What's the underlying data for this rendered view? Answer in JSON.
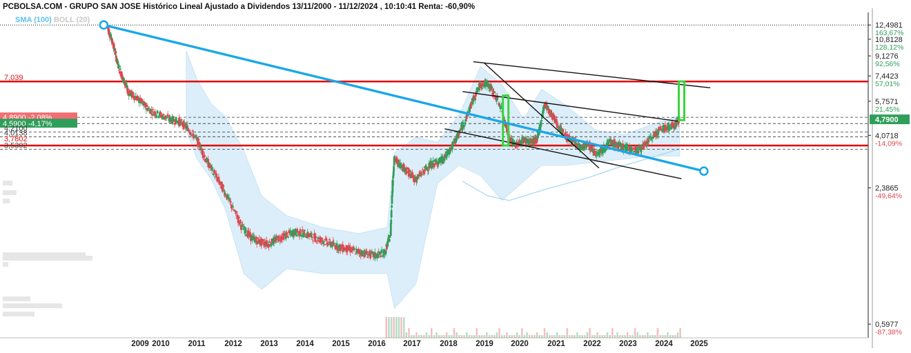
{
  "header": {
    "title": "PCBOLSA.COM - GRUPO SAN JOSE Histórico Lineal Ajustado a Dividendos 13/11/2000 - 11/12/2024 , 10:10:41 Renta: -60,90%"
  },
  "indicators": {
    "sma": "SMA (100)",
    "boll": "BOLL (20)"
  },
  "colors": {
    "up": "#2f9e5a",
    "down": "#e0464f",
    "trendline": "#1aa7e8",
    "resistance": "#dd1111",
    "channel": "#111111",
    "bollinger": "#d6ecf8",
    "projection": "#39d43c",
    "sma": "#9fd6f2"
  },
  "chart_data": {
    "type": "candlestick",
    "y_scale": "log",
    "ylim": [
      0.52,
      14.2
    ],
    "x_labels": [
      "2009",
      "2010",
      "2011",
      "2012",
      "2013",
      "2014",
      "2015",
      "2016",
      "2017",
      "2018",
      "2019",
      "2020",
      "2021",
      "2022",
      "2023",
      "2024",
      "2025"
    ],
    "y_ticks": [
      {
        "value": "12,4981",
        "pct": "163,67%",
        "dir": "pos",
        "v": 12.4981
      },
      {
        "value": "10,8128",
        "pct": "128,12%",
        "dir": "pos",
        "v": 10.8128
      },
      {
        "value": "9,1276",
        "pct": "92,56%",
        "dir": "pos",
        "v": 9.1276
      },
      {
        "value": "7,4423",
        "pct": "57,01%",
        "dir": "pos",
        "v": 7.4423
      },
      {
        "value": "5,7571",
        "pct": "21,45%",
        "dir": "pos",
        "v": 5.7571
      },
      {
        "value": "4,0718",
        "pct": "-14,09%",
        "dir": "neg",
        "v": 4.0718
      },
      {
        "value": "2,3865",
        "pct": "-49,64%",
        "dir": "neg",
        "v": 2.3865
      },
      {
        "value": "0,5977",
        "pct": "-87,38%",
        "dir": "neg",
        "v": 0.5977
      }
    ],
    "price_marker": {
      "value": "4,7900",
      "v": 4.79
    },
    "left_labels": [
      {
        "text": "7,039",
        "v": 7.039,
        "style": "red-text"
      },
      {
        "text": "4,8900 -2,08%",
        "v": 4.89,
        "style": "red-box"
      },
      {
        "text": "4,5900 -4,17%",
        "v": 4.59,
        "style": "green-box"
      },
      {
        "text": "4,2100",
        "v": 4.21,
        "style": "gray-text"
      },
      {
        "text": "4,0138",
        "v": 4.0138,
        "style": "gray-text"
      },
      {
        "text": "3,7802",
        "v": 3.7802,
        "style": "red-text"
      },
      {
        "text": "3,5302",
        "v": 3.5302,
        "style": "gray-text"
      }
    ],
    "horizontal_lines": [
      {
        "v": 7.039,
        "kind": "resistance"
      },
      {
        "v": 3.67,
        "kind": "resistance"
      },
      {
        "v": 12.4981,
        "kind": "dotted"
      },
      {
        "v": 4.89,
        "kind": "dashed"
      },
      {
        "v": 4.59,
        "kind": "dashed"
      },
      {
        "v": 4.21,
        "kind": "dashed"
      },
      {
        "v": 4.0138,
        "kind": "dashed"
      },
      {
        "v": 3.5302,
        "kind": "dashed"
      }
    ],
    "trendline": {
      "from": {
        "year": 2008.9,
        "value": 12.4981
      },
      "to": {
        "year": 2024.95,
        "value": 2.83
      }
    },
    "channel_lines": [
      {
        "from": {
          "year": 2019.2,
          "value": 8.6
        },
        "to": {
          "year": 2025.8,
          "value": 6.6
        }
      },
      {
        "from": {
          "year": 2018.9,
          "value": 6.35
        },
        "to": {
          "year": 2024.9,
          "value": 4.7
        }
      },
      {
        "from": {
          "year": 2018.4,
          "value": 4.35
        },
        "to": {
          "year": 2025.0,
          "value": 2.62
        }
      },
      {
        "from": {
          "year": 2019.5,
          "value": 8.5
        },
        "to": {
          "year": 2022.7,
          "value": 2.92
        }
      }
    ],
    "projections": [
      {
        "year": 2020.1,
        "from": 3.67,
        "to": 6.1
      },
      {
        "year": 2025.0,
        "from": 4.75,
        "to": 7.039
      }
    ],
    "series": [
      {
        "name": "price",
        "points": [
          [
            2009.0,
            12.4
          ],
          [
            2009.15,
            10.5
          ],
          [
            2009.3,
            8.4
          ],
          [
            2009.45,
            7.2
          ],
          [
            2009.6,
            6.3
          ],
          [
            2009.8,
            6.0
          ],
          [
            2010.0,
            5.6
          ],
          [
            2010.25,
            5.2
          ],
          [
            2010.5,
            5.0
          ],
          [
            2010.75,
            4.8
          ],
          [
            2011.0,
            4.7
          ],
          [
            2011.25,
            4.4
          ],
          [
            2011.5,
            3.9
          ],
          [
            2011.75,
            3.2
          ],
          [
            2012.0,
            2.75
          ],
          [
            2012.25,
            2.35
          ],
          [
            2012.5,
            1.95
          ],
          [
            2012.75,
            1.62
          ],
          [
            2013.0,
            1.45
          ],
          [
            2013.25,
            1.38
          ],
          [
            2013.5,
            1.35
          ],
          [
            2013.75,
            1.42
          ],
          [
            2014.0,
            1.48
          ],
          [
            2014.25,
            1.52
          ],
          [
            2014.5,
            1.5
          ],
          [
            2014.75,
            1.45
          ],
          [
            2015.0,
            1.4
          ],
          [
            2015.25,
            1.35
          ],
          [
            2015.5,
            1.3
          ],
          [
            2015.75,
            1.28
          ],
          [
            2016.0,
            1.25
          ],
          [
            2016.25,
            1.22
          ],
          [
            2016.5,
            1.2
          ],
          [
            2016.75,
            1.24
          ],
          [
            2016.9,
            1.5
          ],
          [
            2017.0,
            3.2
          ],
          [
            2017.2,
            3.0
          ],
          [
            2017.4,
            2.8
          ],
          [
            2017.6,
            2.6
          ],
          [
            2017.8,
            2.8
          ],
          [
            2018.0,
            3.0
          ],
          [
            2018.2,
            3.1
          ],
          [
            2018.4,
            3.2
          ],
          [
            2018.6,
            3.6
          ],
          [
            2018.8,
            4.1
          ],
          [
            2019.0,
            4.8
          ],
          [
            2019.2,
            5.8
          ],
          [
            2019.4,
            6.8
          ],
          [
            2019.6,
            6.9
          ],
          [
            2019.8,
            6.2
          ],
          [
            2020.0,
            5.3
          ],
          [
            2020.2,
            3.9
          ],
          [
            2020.4,
            3.7
          ],
          [
            2020.6,
            3.9
          ],
          [
            2020.8,
            3.8
          ],
          [
            2021.0,
            3.9
          ],
          [
            2021.2,
            5.6
          ],
          [
            2021.4,
            5.0
          ],
          [
            2021.6,
            4.4
          ],
          [
            2021.8,
            4.0
          ],
          [
            2022.0,
            3.8
          ],
          [
            2022.2,
            3.6
          ],
          [
            2022.4,
            3.7
          ],
          [
            2022.6,
            3.4
          ],
          [
            2022.8,
            3.5
          ],
          [
            2023.0,
            3.8
          ],
          [
            2023.2,
            3.7
          ],
          [
            2023.4,
            3.6
          ],
          [
            2023.6,
            3.55
          ],
          [
            2023.8,
            3.5
          ],
          [
            2024.0,
            3.7
          ],
          [
            2024.2,
            4.0
          ],
          [
            2024.4,
            4.3
          ],
          [
            2024.6,
            4.4
          ],
          [
            2024.8,
            4.5
          ],
          [
            2024.95,
            4.79
          ]
        ]
      }
    ]
  }
}
